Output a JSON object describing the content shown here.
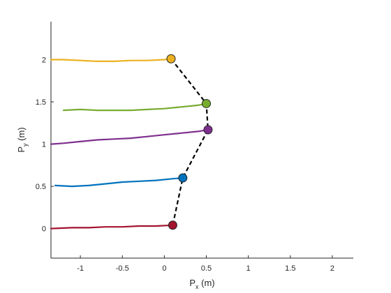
{
  "chart_data": {
    "type": "line",
    "title": "",
    "xlabel": {
      "main": "P",
      "sub": "x",
      "unit": " (m)"
    },
    "ylabel": {
      "main": "P",
      "sub": "y",
      "unit": " (m)"
    },
    "xlim": [
      -1.35,
      2.25
    ],
    "ylim": [
      -0.35,
      2.45
    ],
    "xticks": [
      -1,
      -0.5,
      0,
      0.5,
      1,
      1.5,
      2
    ],
    "xtick_labels": [
      "-1",
      "-0.5",
      "0",
      "0.5",
      "1",
      "1.5",
      "2"
    ],
    "yticks": [
      0,
      0.5,
      1,
      1.5,
      2
    ],
    "ytick_labels": [
      "0",
      "0.5",
      "1",
      "1.5",
      "2"
    ],
    "grid": false,
    "legend": "none",
    "series": [
      {
        "color": "#edb120",
        "x": [
          -1.35,
          -1.2,
          -1.0,
          -0.8,
          -0.6,
          -0.4,
          -0.2,
          0.0,
          0.08
        ],
        "y": [
          2.0,
          2.0,
          1.99,
          1.98,
          1.98,
          1.99,
          1.99,
          2.0,
          2.01
        ],
        "end": [
          0.08,
          2.01
        ]
      },
      {
        "color": "#77ac30",
        "x": [
          -1.2,
          -1.0,
          -0.8,
          -0.6,
          -0.4,
          -0.2,
          0.0,
          0.2,
          0.4,
          0.5
        ],
        "y": [
          1.4,
          1.41,
          1.4,
          1.4,
          1.4,
          1.41,
          1.42,
          1.44,
          1.46,
          1.48
        ],
        "end": [
          0.5,
          1.48
        ]
      },
      {
        "color": "#7e2f8e",
        "x": [
          -1.35,
          -1.2,
          -1.0,
          -0.8,
          -0.6,
          -0.4,
          -0.2,
          0.0,
          0.2,
          0.4,
          0.52
        ],
        "y": [
          1.0,
          1.01,
          1.03,
          1.05,
          1.06,
          1.07,
          1.09,
          1.11,
          1.13,
          1.15,
          1.17
        ],
        "end": [
          0.52,
          1.17
        ]
      },
      {
        "color": "#0072bd",
        "x": [
          -1.3,
          -1.1,
          -0.9,
          -0.7,
          -0.5,
          -0.3,
          -0.1,
          0.1,
          0.22
        ],
        "y": [
          0.51,
          0.5,
          0.51,
          0.53,
          0.55,
          0.56,
          0.57,
          0.59,
          0.6
        ],
        "end": [
          0.22,
          0.6
        ]
      },
      {
        "color": "#a2142f",
        "x": [
          -1.35,
          -1.1,
          -0.9,
          -0.7,
          -0.5,
          -0.3,
          -0.1,
          0.1
        ],
        "y": [
          0.0,
          0.01,
          0.01,
          0.02,
          0.02,
          0.03,
          0.03,
          0.04
        ],
        "end": [
          0.1,
          0.04
        ]
      }
    ],
    "connector": {
      "style": "dashed",
      "color": "#000000",
      "x": [
        0.08,
        0.5,
        0.52,
        0.22,
        0.1
      ],
      "y": [
        2.01,
        1.48,
        1.17,
        0.6,
        0.04
      ]
    }
  }
}
